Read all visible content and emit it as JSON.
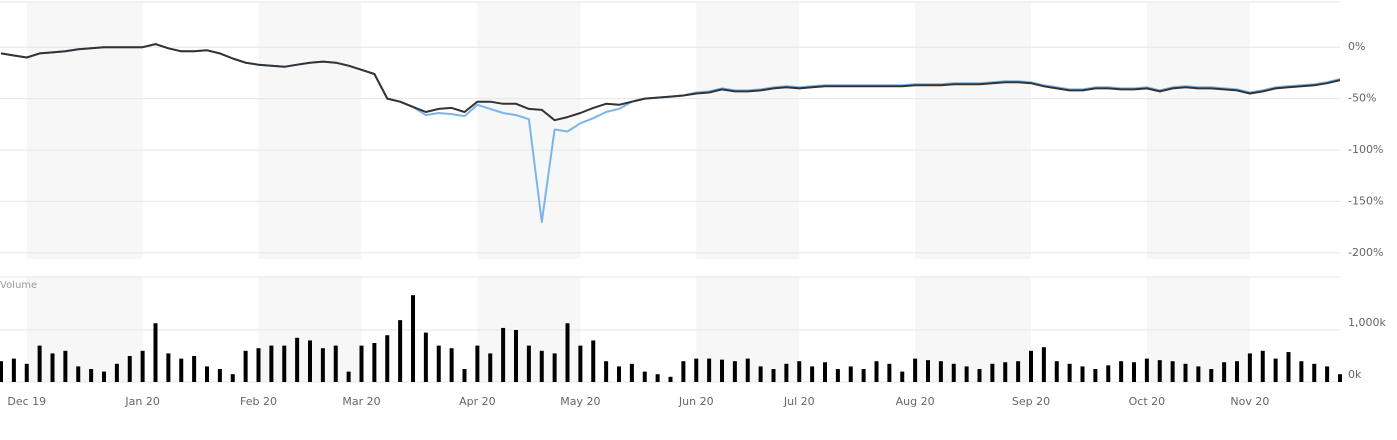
{
  "chart_data": [
    {
      "type": "line",
      "categories": [
        null,
        null,
        "Dec 19",
        null,
        null,
        null,
        null,
        null,
        null,
        null,
        null,
        "Jan 20",
        null,
        null,
        null,
        null,
        null,
        null,
        null,
        null,
        "Feb 20",
        null,
        null,
        null,
        null,
        null,
        null,
        null,
        "Mar 20",
        null,
        null,
        null,
        null,
        null,
        null,
        null,
        null,
        "Apr 20",
        null,
        null,
        null,
        null,
        null,
        null,
        null,
        "May 20",
        null,
        null,
        null,
        null,
        null,
        null,
        null,
        null,
        "Jun 20",
        null,
        null,
        null,
        null,
        null,
        null,
        null,
        "Jul 20",
        null,
        null,
        null,
        null,
        null,
        null,
        null,
        null,
        "Aug 20",
        null,
        null,
        null,
        null,
        null,
        null,
        null,
        null,
        "Sep 20",
        null,
        null,
        null,
        null,
        null,
        null,
        null,
        null,
        "Oct 20",
        null,
        null,
        null,
        null,
        null,
        null,
        null,
        "Nov 20",
        null,
        null,
        null,
        null,
        null,
        null,
        null
      ],
      "series": [
        {
          "color": "#7cb5ec",
          "values": [
            -6,
            -8,
            -10,
            -6,
            -5,
            -4,
            -2,
            -1,
            0,
            0,
            0,
            0,
            3,
            -1,
            -4,
            -4,
            -3,
            -6,
            -11,
            -15,
            -17,
            -18,
            -19,
            -17,
            -15,
            -14,
            -15,
            -18,
            -22,
            -26,
            -50,
            -53,
            -58,
            -66,
            -64,
            -65,
            -67,
            -56,
            -60,
            -64,
            -66,
            -70,
            -170,
            -80,
            -82,
            -74,
            -69,
            -63,
            -60,
            -53,
            -50,
            -49,
            -48,
            -47,
            -44,
            -43,
            -40,
            -42,
            -42,
            -41,
            -39,
            -38,
            -39,
            -38,
            -37,
            -37,
            -37,
            -37,
            -37,
            -37,
            -37,
            -36,
            -36,
            -36,
            -35,
            -35,
            -35,
            -34,
            -33,
            -33,
            -34,
            -37,
            -39,
            -41,
            -41,
            -39,
            -39,
            -40,
            -40,
            -39,
            -42,
            -39,
            -38,
            -39,
            -39,
            -40,
            -41,
            -44,
            -42,
            -39,
            -38,
            -37,
            -36,
            -34,
            -31
          ]
        },
        {
          "color": "#333333",
          "values": [
            -6,
            -8,
            -10,
            -6,
            -5,
            -4,
            -2,
            -1,
            0,
            0,
            0,
            0,
            3,
            -1,
            -4,
            -4,
            -3,
            -6,
            -11,
            -15,
            -17,
            -18,
            -19,
            -17,
            -15,
            -14,
            -15,
            -18,
            -22,
            -26,
            -50,
            -53,
            -58,
            -63,
            -60,
            -59,
            -63,
            -53,
            -53,
            -55,
            -55,
            -60,
            -61,
            -71,
            -68,
            -64,
            -59,
            -55,
            -56,
            -53,
            -50,
            -49,
            -48,
            -47,
            -45,
            -44,
            -41,
            -43,
            -43,
            -42,
            -40,
            -39,
            -40,
            -39,
            -38,
            -38,
            -38,
            -38,
            -38,
            -38,
            -38,
            -37,
            -37,
            -37,
            -36,
            -36,
            -36,
            -35,
            -34,
            -34,
            -35,
            -38,
            -40,
            -42,
            -42,
            -40,
            -40,
            -41,
            -41,
            -40,
            -43,
            -40,
            -39,
            -40,
            -40,
            -41,
            -42,
            -45,
            -43,
            -40,
            -39,
            -38,
            -37,
            -35,
            -32
          ]
        }
      ],
      "ylim": [
        -206,
        44
      ],
      "yticks": [
        {
          "value": 0,
          "label": "0%"
        },
        {
          "value": -50,
          "label": "-50%"
        },
        {
          "value": -100,
          "label": "-100%"
        },
        {
          "value": -150,
          "label": "-150%"
        },
        {
          "value": -200,
          "label": "-200%"
        }
      ],
      "grid": true
    },
    {
      "type": "bar",
      "label": "Volume",
      "color": "#000000",
      "values": [
        400,
        450,
        350,
        700,
        550,
        600,
        300,
        250,
        200,
        350,
        500,
        600,
        1130,
        550,
        450,
        500,
        300,
        250,
        150,
        600,
        650,
        700,
        700,
        850,
        800,
        650,
        700,
        200,
        700,
        750,
        900,
        1190,
        1670,
        950,
        700,
        650,
        250,
        700,
        550,
        1040,
        1000,
        700,
        600,
        550,
        1130,
        700,
        800,
        400,
        300,
        350,
        200,
        150,
        100,
        400,
        450,
        450,
        430,
        400,
        450,
        300,
        250,
        350,
        400,
        300,
        380,
        250,
        300,
        250,
        400,
        350,
        200,
        450,
        420,
        400,
        350,
        300,
        250,
        350,
        380,
        400,
        600,
        670,
        400,
        350,
        300,
        250,
        320,
        400,
        380,
        450,
        420,
        400,
        350,
        300,
        250,
        380,
        400,
        550,
        600,
        450,
        576,
        400,
        350,
        300,
        150
      ],
      "ylim": [
        0,
        2020
      ],
      "yticks": [
        {
          "value": 0,
          "label": "0k"
        },
        {
          "value": 1000,
          "label": "1,000k"
        }
      ],
      "grid": true
    }
  ]
}
